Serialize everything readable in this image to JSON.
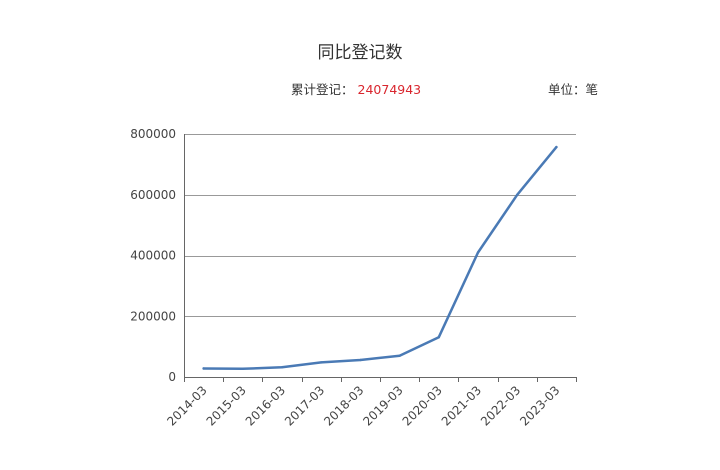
{
  "header": {
    "title": "同比登记数",
    "total_label": "累计登记：",
    "total_value": "24074943",
    "unit_label": "单位：笔"
  },
  "colors": {
    "line": "#4a7ab5",
    "grid": "#999999",
    "total_value": "#d9262e"
  },
  "chart_data": {
    "type": "line",
    "title": "同比登记数",
    "xlabel": "",
    "ylabel": "",
    "ylim": [
      0,
      800000
    ],
    "yticks": [
      0,
      200000,
      400000,
      600000,
      800000
    ],
    "grid": true,
    "legend": "none",
    "categories": [
      "2014-03",
      "2015-03",
      "2016-03",
      "2017-03",
      "2018-03",
      "2019-03",
      "2020-03",
      "2021-03",
      "2022-03",
      "2023-03"
    ],
    "series": [
      {
        "values": [
          28000,
          27000,
          32000,
          48000,
          56000,
          70000,
          131000,
          410000,
          600000,
          757000
        ]
      }
    ]
  }
}
